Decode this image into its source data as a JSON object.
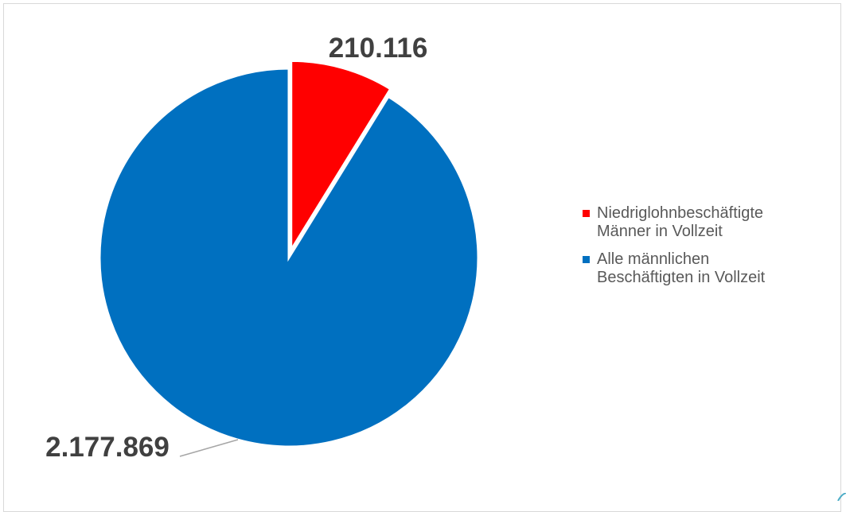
{
  "chart_data": {
    "type": "pie",
    "slices": [
      {
        "label": "Niedriglohnbeschäftigte Männer in Vollzeit",
        "value": 210116,
        "display": "210.116",
        "color": "#ff0000",
        "exploded": true
      },
      {
        "label": "Alle männlichen Beschäftigten in Vollzeit",
        "value": 2177869,
        "display": "2.177.869",
        "color": "#0070c0",
        "exploded": false
      }
    ],
    "legend_placement": "right",
    "start_angle": "12 o'clock",
    "direction": "clockwise"
  },
  "legend": {
    "items": [
      {
        "label_line1": "Niedriglohnbeschäftigte",
        "label_line2": "Männer in Vollzeit",
        "color": "#ff0000"
      },
      {
        "label_line1": "Alle männlichen",
        "label_line2": "Beschäftigten in Vollzeit",
        "color": "#0070c0"
      }
    ]
  },
  "colors": {
    "text": "#404040",
    "legend_text": "#595959",
    "border": "#d9d9d9",
    "leader": "#a6a6a6"
  }
}
